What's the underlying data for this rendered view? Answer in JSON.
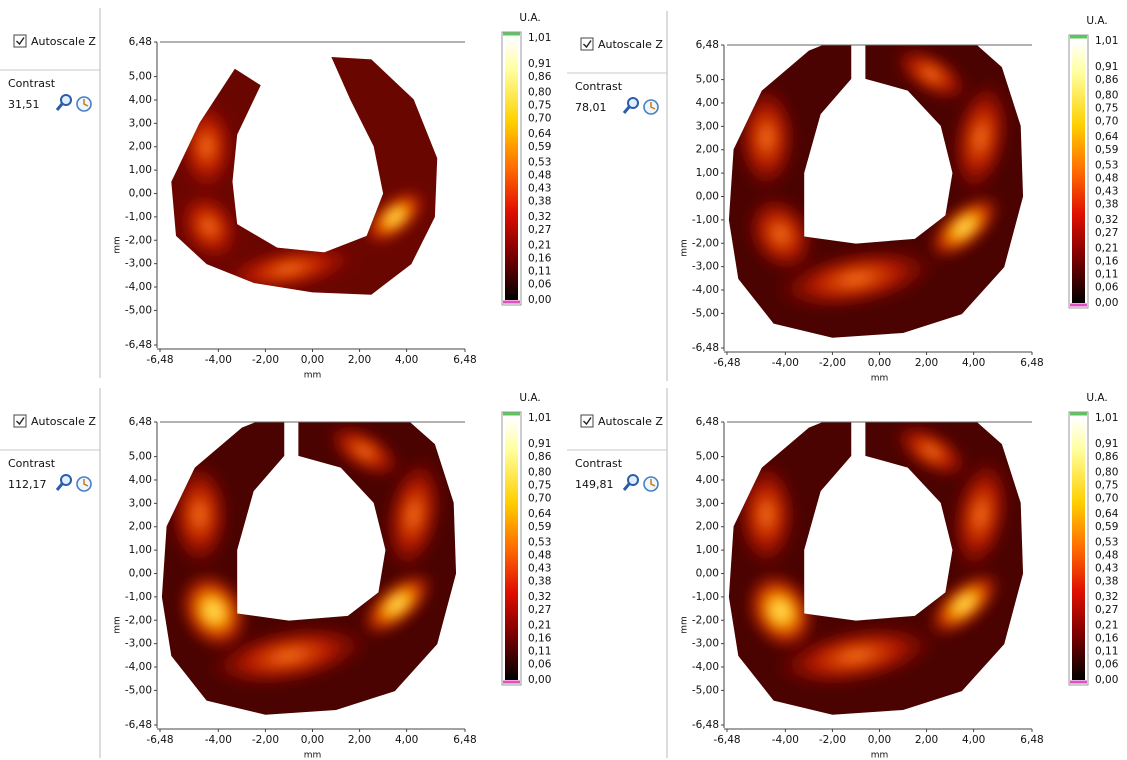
{
  "panels": [
    {
      "autoscale_label": "Autoscale Z",
      "contrast_label": "Contrast",
      "contrast_value": "31,51",
      "y_axis_label": "mm",
      "x_axis_label": "mm",
      "y_ticks": [
        "6,48",
        "5,00",
        "4,00",
        "3,00",
        "2,00",
        "1,00",
        "0,00",
        "-1,00",
        "-2,00",
        "-3,00",
        "-4,00",
        "-5,00",
        "-6,48"
      ],
      "x_ticks": [
        "-6,48",
        "-4,00",
        "-2,00",
        "0,00",
        "2,00",
        "4,00",
        "6,48"
      ],
      "colorbar_title": "U.A.",
      "colorbar_ticks": [
        "1,01",
        "0,91",
        "0,86",
        "0,80",
        "0,75",
        "0,70",
        "0,64",
        "0,59",
        "0,53",
        "0,48",
        "0,43",
        "0,38",
        "0,32",
        "0,27",
        "0,21",
        "0,16",
        "0,11",
        "0,06",
        "0,00"
      ]
    },
    {
      "autoscale_label": "Autoscale Z",
      "contrast_label": "Contrast",
      "contrast_value": "78,01",
      "y_axis_label": "mm",
      "x_axis_label": "mm",
      "y_ticks": [
        "6,48",
        "5,00",
        "4,00",
        "3,00",
        "2,00",
        "1,00",
        "0,00",
        "-1,00",
        "-2,00",
        "-3,00",
        "-4,00",
        "-5,00",
        "-6,48"
      ],
      "x_ticks": [
        "-6,48",
        "-4,00",
        "-2,00",
        "0,00",
        "2,00",
        "4,00",
        "6,48"
      ],
      "colorbar_title": "U.A.",
      "colorbar_ticks": [
        "1,01",
        "0,91",
        "0,86",
        "0,80",
        "0,75",
        "0,70",
        "0,64",
        "0,59",
        "0,53",
        "0,48",
        "0,43",
        "0,38",
        "0,32",
        "0,27",
        "0,21",
        "0,16",
        "0,11",
        "0,06",
        "0,00"
      ]
    },
    {
      "autoscale_label": "Autoscale Z",
      "contrast_label": "Contrast",
      "contrast_value": "112,17",
      "y_axis_label": "mm",
      "x_axis_label": "mm",
      "y_ticks": [
        "6,48",
        "5,00",
        "4,00",
        "3,00",
        "2,00",
        "1,00",
        "0,00",
        "-1,00",
        "-2,00",
        "-3,00",
        "-4,00",
        "-5,00",
        "-6,48"
      ],
      "x_ticks": [
        "-6,48",
        "-4,00",
        "-2,00",
        "0,00",
        "2,00",
        "4,00",
        "6,48"
      ],
      "colorbar_title": "U.A.",
      "colorbar_ticks": [
        "1,01",
        "0,91",
        "0,86",
        "0,80",
        "0,75",
        "0,70",
        "0,64",
        "0,59",
        "0,53",
        "0,48",
        "0,43",
        "0,38",
        "0,32",
        "0,27",
        "0,21",
        "0,16",
        "0,11",
        "0,06",
        "0,00"
      ]
    },
    {
      "autoscale_label": "Autoscale Z",
      "contrast_label": "Contrast",
      "contrast_value": "149,81",
      "y_axis_label": "mm",
      "x_axis_label": "mm",
      "y_ticks": [
        "6,48",
        "5,00",
        "4,00",
        "3,00",
        "2,00",
        "1,00",
        "0,00",
        "-1,00",
        "-2,00",
        "-3,00",
        "-4,00",
        "-5,00",
        "-6,48"
      ],
      "x_ticks": [
        "-6,48",
        "-4,00",
        "-2,00",
        "0,00",
        "2,00",
        "4,00",
        "6,48"
      ],
      "colorbar_title": "U.A.",
      "colorbar_ticks": [
        "1,01",
        "0,91",
        "0,86",
        "0,80",
        "0,75",
        "0,70",
        "0,64",
        "0,59",
        "0,53",
        "0,48",
        "0,43",
        "0,38",
        "0,32",
        "0,27",
        "0,21",
        "0,16",
        "0,11",
        "0,06",
        "0,00"
      ]
    }
  ]
}
